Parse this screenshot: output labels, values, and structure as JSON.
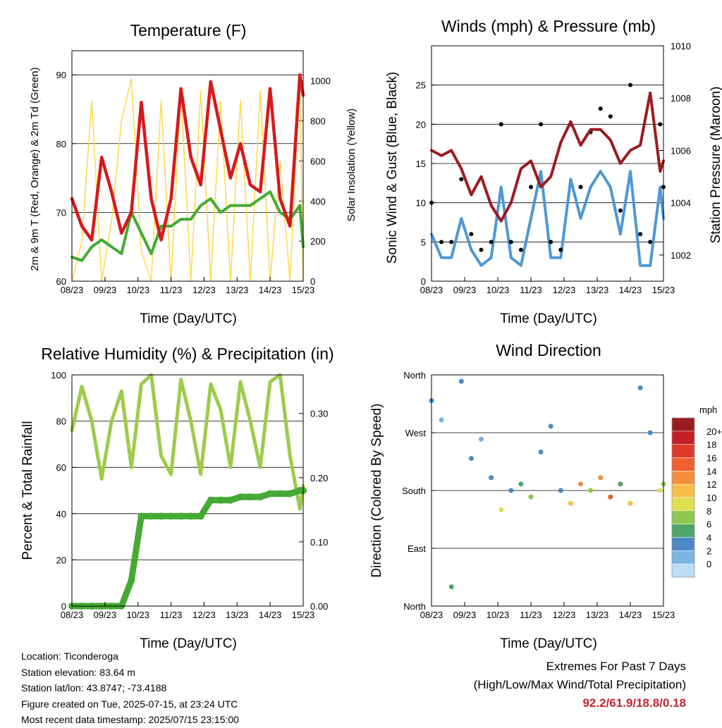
{
  "x_ticks": [
    "08/23",
    "09/23",
    "10/23",
    "11/23",
    "12/23",
    "13/23",
    "14/23",
    "15/23"
  ],
  "panels": {
    "temperature": {
      "title": "Temperature (F)",
      "ylabel_left": "2m & 9m T (Red, Orange) & 2m Td (Green)",
      "ylabel_right": "Solar Insolation (Yellow)",
      "xlabel": "Time (Day/UTC)"
    },
    "winds": {
      "title": "Winds (mph) & Pressure (mb)",
      "ylabel_left": "Sonic Wind & Gust (Blue, Black)",
      "ylabel_right": "Station Pressure (Maroon)",
      "xlabel": "Time (Day/UTC)"
    },
    "humidity": {
      "title": "Relative Humidity (%) & Precipitation (in)",
      "ylabel_left": "Percent & Total Rainfall",
      "xlabel": "Time (Day/UTC)"
    },
    "direction": {
      "title": "Wind Direction",
      "ylabel_left": "Direction (Colored By Speed)",
      "xlabel": "Time (Day/UTC)",
      "colorbar": {
        "unit": "mph",
        "labels": [
          "20+",
          "18",
          "16",
          "14",
          "12",
          "10",
          "8",
          "6",
          "4",
          "2",
          "0"
        ],
        "colors": [
          "#9b1c1f",
          "#c21f26",
          "#de3a2c",
          "#ee6030",
          "#f48e3e",
          "#f6bf4a",
          "#dfdd52",
          "#8fc64f",
          "#4ea56a",
          "#4b89c4",
          "#7ab5e3",
          "#b9def6"
        ]
      }
    }
  },
  "info": {
    "location": "Location: Ticonderoga",
    "elevation": "Station elevation: 83.64 m",
    "latlon": "Station lat/lon: 43.8747; -73.4188",
    "created": "Figure created on Tue, 2025-07-15, at 23:24 UTC",
    "recent": "Most recent data timestamp: 2025/07/15 23:15:00"
  },
  "extremes": {
    "title": "Extremes For Past 7 Days",
    "subtitle": "(High/Low/Max Wind/Total Precipitation)",
    "values": "92.2/61.9/18.8/0.18"
  },
  "chart_data": [
    {
      "type": "line",
      "title": "Temperature (F)",
      "xlabel": "Time (Day/UTC)",
      "ylabel": "2m & 9m T (Red, Orange) & 2m Td (Green)",
      "y2label": "Solar Insolation (Yellow)",
      "ylim": [
        60,
        93.5
      ],
      "y2lim": [
        0,
        1150
      ],
      "yticks": [
        60,
        70,
        80,
        90
      ],
      "y2ticks": [
        0,
        200,
        400,
        600,
        800,
        1000
      ],
      "x": [
        8.0,
        8.3,
        8.6,
        8.9,
        9.2,
        9.5,
        9.8,
        10.1,
        10.4,
        10.7,
        11.0,
        11.3,
        11.6,
        11.9,
        12.2,
        12.5,
        12.8,
        13.1,
        13.4,
        13.7,
        14.0,
        14.3,
        14.6,
        14.9,
        15.0
      ],
      "series": [
        {
          "name": "2m T",
          "color": "#d7191c",
          "values": [
            72,
            68,
            66,
            78,
            73,
            67,
            70,
            86,
            72,
            66,
            72,
            88,
            78,
            74,
            89,
            82,
            75,
            80,
            74,
            73,
            88,
            72,
            68,
            90,
            87
          ]
        },
        {
          "name": "2m Td",
          "color": "#44aa33",
          "values": [
            63.5,
            63,
            65,
            66,
            65,
            64,
            70,
            67,
            64,
            68,
            68,
            69,
            69,
            71,
            72,
            70,
            71,
            71,
            71,
            72,
            73,
            70,
            69,
            71,
            65
          ]
        },
        {
          "name": "Solar Insolation",
          "color": "#ffd94a",
          "values": [
            0,
            200,
            900,
            0,
            300,
            800,
            1010,
            150,
            0,
            900,
            0,
            950,
            0,
            950,
            0,
            900,
            0,
            900,
            0,
            950,
            0,
            600,
            0,
            1000,
            0
          ]
        }
      ]
    },
    {
      "type": "line",
      "title": "Winds (mph) & Pressure (mb)",
      "xlabel": "Time (Day/UTC)",
      "ylabel": "Sonic Wind & Gust (Blue, Black)",
      "y2label": "Station Pressure (Maroon)",
      "ylim": [
        0,
        30
      ],
      "y2lim": [
        1001,
        1010
      ],
      "yticks": [
        0,
        5,
        10,
        15,
        20,
        25
      ],
      "y2ticks": [
        1002,
        1004,
        1006,
        1008,
        1010
      ],
      "x": [
        8.0,
        8.3,
        8.6,
        8.9,
        9.2,
        9.5,
        9.8,
        10.1,
        10.4,
        10.7,
        11.0,
        11.3,
        11.6,
        11.9,
        12.2,
        12.5,
        12.8,
        13.1,
        13.4,
        13.7,
        14.0,
        14.3,
        14.6,
        14.9,
        15.0
      ],
      "series": [
        {
          "name": "Sonic Wind",
          "color": "#4f97d4",
          "values": [
            6,
            3,
            3,
            8,
            4,
            2,
            3,
            12,
            3,
            2,
            8,
            14,
            3,
            3,
            13,
            8,
            12,
            14,
            12,
            6,
            14,
            2,
            2,
            12,
            8
          ]
        },
        {
          "name": "Gust",
          "color": "#000000",
          "values": [
            10,
            5,
            5,
            13,
            6,
            4,
            5,
            20,
            5,
            4,
            12,
            20,
            5,
            4,
            20,
            12,
            19,
            22,
            21,
            9,
            25,
            6,
            5,
            20,
            12
          ]
        },
        {
          "name": "Station Pressure",
          "color": "#9b1c1f",
          "values": [
            1006,
            1005.8,
            1006,
            1005.3,
            1004.3,
            1005,
            1003.9,
            1003.3,
            1004,
            1005.3,
            1005.6,
            1004.6,
            1005,
            1006.3,
            1007.1,
            1006.2,
            1006.8,
            1006.8,
            1006.4,
            1005.5,
            1006,
            1006.2,
            1008.2,
            1005.2,
            1005.6
          ]
        }
      ]
    },
    {
      "type": "line",
      "title": "Relative Humidity (%) & Precipitation (in)",
      "xlabel": "Time (Day/UTC)",
      "ylabel": "Percent & Total Rainfall",
      "ylim": [
        0,
        100
      ],
      "y2lim": [
        0,
        0.36
      ],
      "yticks": [
        0,
        20,
        40,
        60,
        80,
        100
      ],
      "y2ticks": [
        0.0,
        0.1,
        0.2,
        0.3
      ],
      "x": [
        8.0,
        8.3,
        8.6,
        8.9,
        9.2,
        9.5,
        9.8,
        10.1,
        10.4,
        10.7,
        11.0,
        11.3,
        11.6,
        11.9,
        12.2,
        12.5,
        12.8,
        13.1,
        13.4,
        13.7,
        14.0,
        14.3,
        14.6,
        14.9,
        15.0
      ],
      "series": [
        {
          "name": "Relative Humidity",
          "color": "#9ccc4c",
          "values": [
            76,
            95,
            80,
            55,
            80,
            93,
            60,
            96,
            100,
            65,
            57,
            98,
            80,
            57,
            96,
            85,
            60,
            97,
            80,
            60,
            97,
            100,
            65,
            42,
            52
          ]
        },
        {
          "name": "Total Rainfall",
          "color": "#44aa33",
          "values": [
            0,
            0,
            0,
            0,
            0,
            0,
            0.04,
            0.14,
            0.14,
            0.14,
            0.14,
            0.14,
            0.14,
            0.14,
            0.165,
            0.165,
            0.165,
            0.17,
            0.17,
            0.17,
            0.175,
            0.175,
            0.175,
            0.18,
            0.18
          ]
        }
      ]
    },
    {
      "type": "scatter",
      "title": "Wind Direction",
      "xlabel": "Time (Day/UTC)",
      "ylabel": "Direction (Colored By Speed)",
      "yticks": [
        "North",
        "East",
        "South",
        "West",
        "North"
      ],
      "ylim": [
        0,
        360
      ],
      "x": [
        8.0,
        8.3,
        8.6,
        8.9,
        9.2,
        9.5,
        9.8,
        10.1,
        10.4,
        10.7,
        11.0,
        11.3,
        11.6,
        11.9,
        12.2,
        12.5,
        12.8,
        13.1,
        13.4,
        13.7,
        14.0,
        14.3,
        14.6,
        14.9,
        15.0
      ],
      "series": [
        {
          "name": "Direction",
          "values": [
            320,
            290,
            30,
            350,
            230,
            260,
            200,
            150,
            180,
            190,
            170,
            240,
            280,
            180,
            160,
            190,
            180,
            200,
            170,
            190,
            160,
            340,
            270,
            180,
            190
          ]
        },
        {
          "name": "Speed",
          "values": [
            4,
            2,
            6,
            4,
            4,
            2,
            4,
            10,
            4,
            6,
            8,
            4,
            3,
            4,
            12,
            14,
            8,
            14,
            16,
            6,
            12,
            4,
            3,
            10,
            8
          ]
        }
      ]
    }
  ]
}
